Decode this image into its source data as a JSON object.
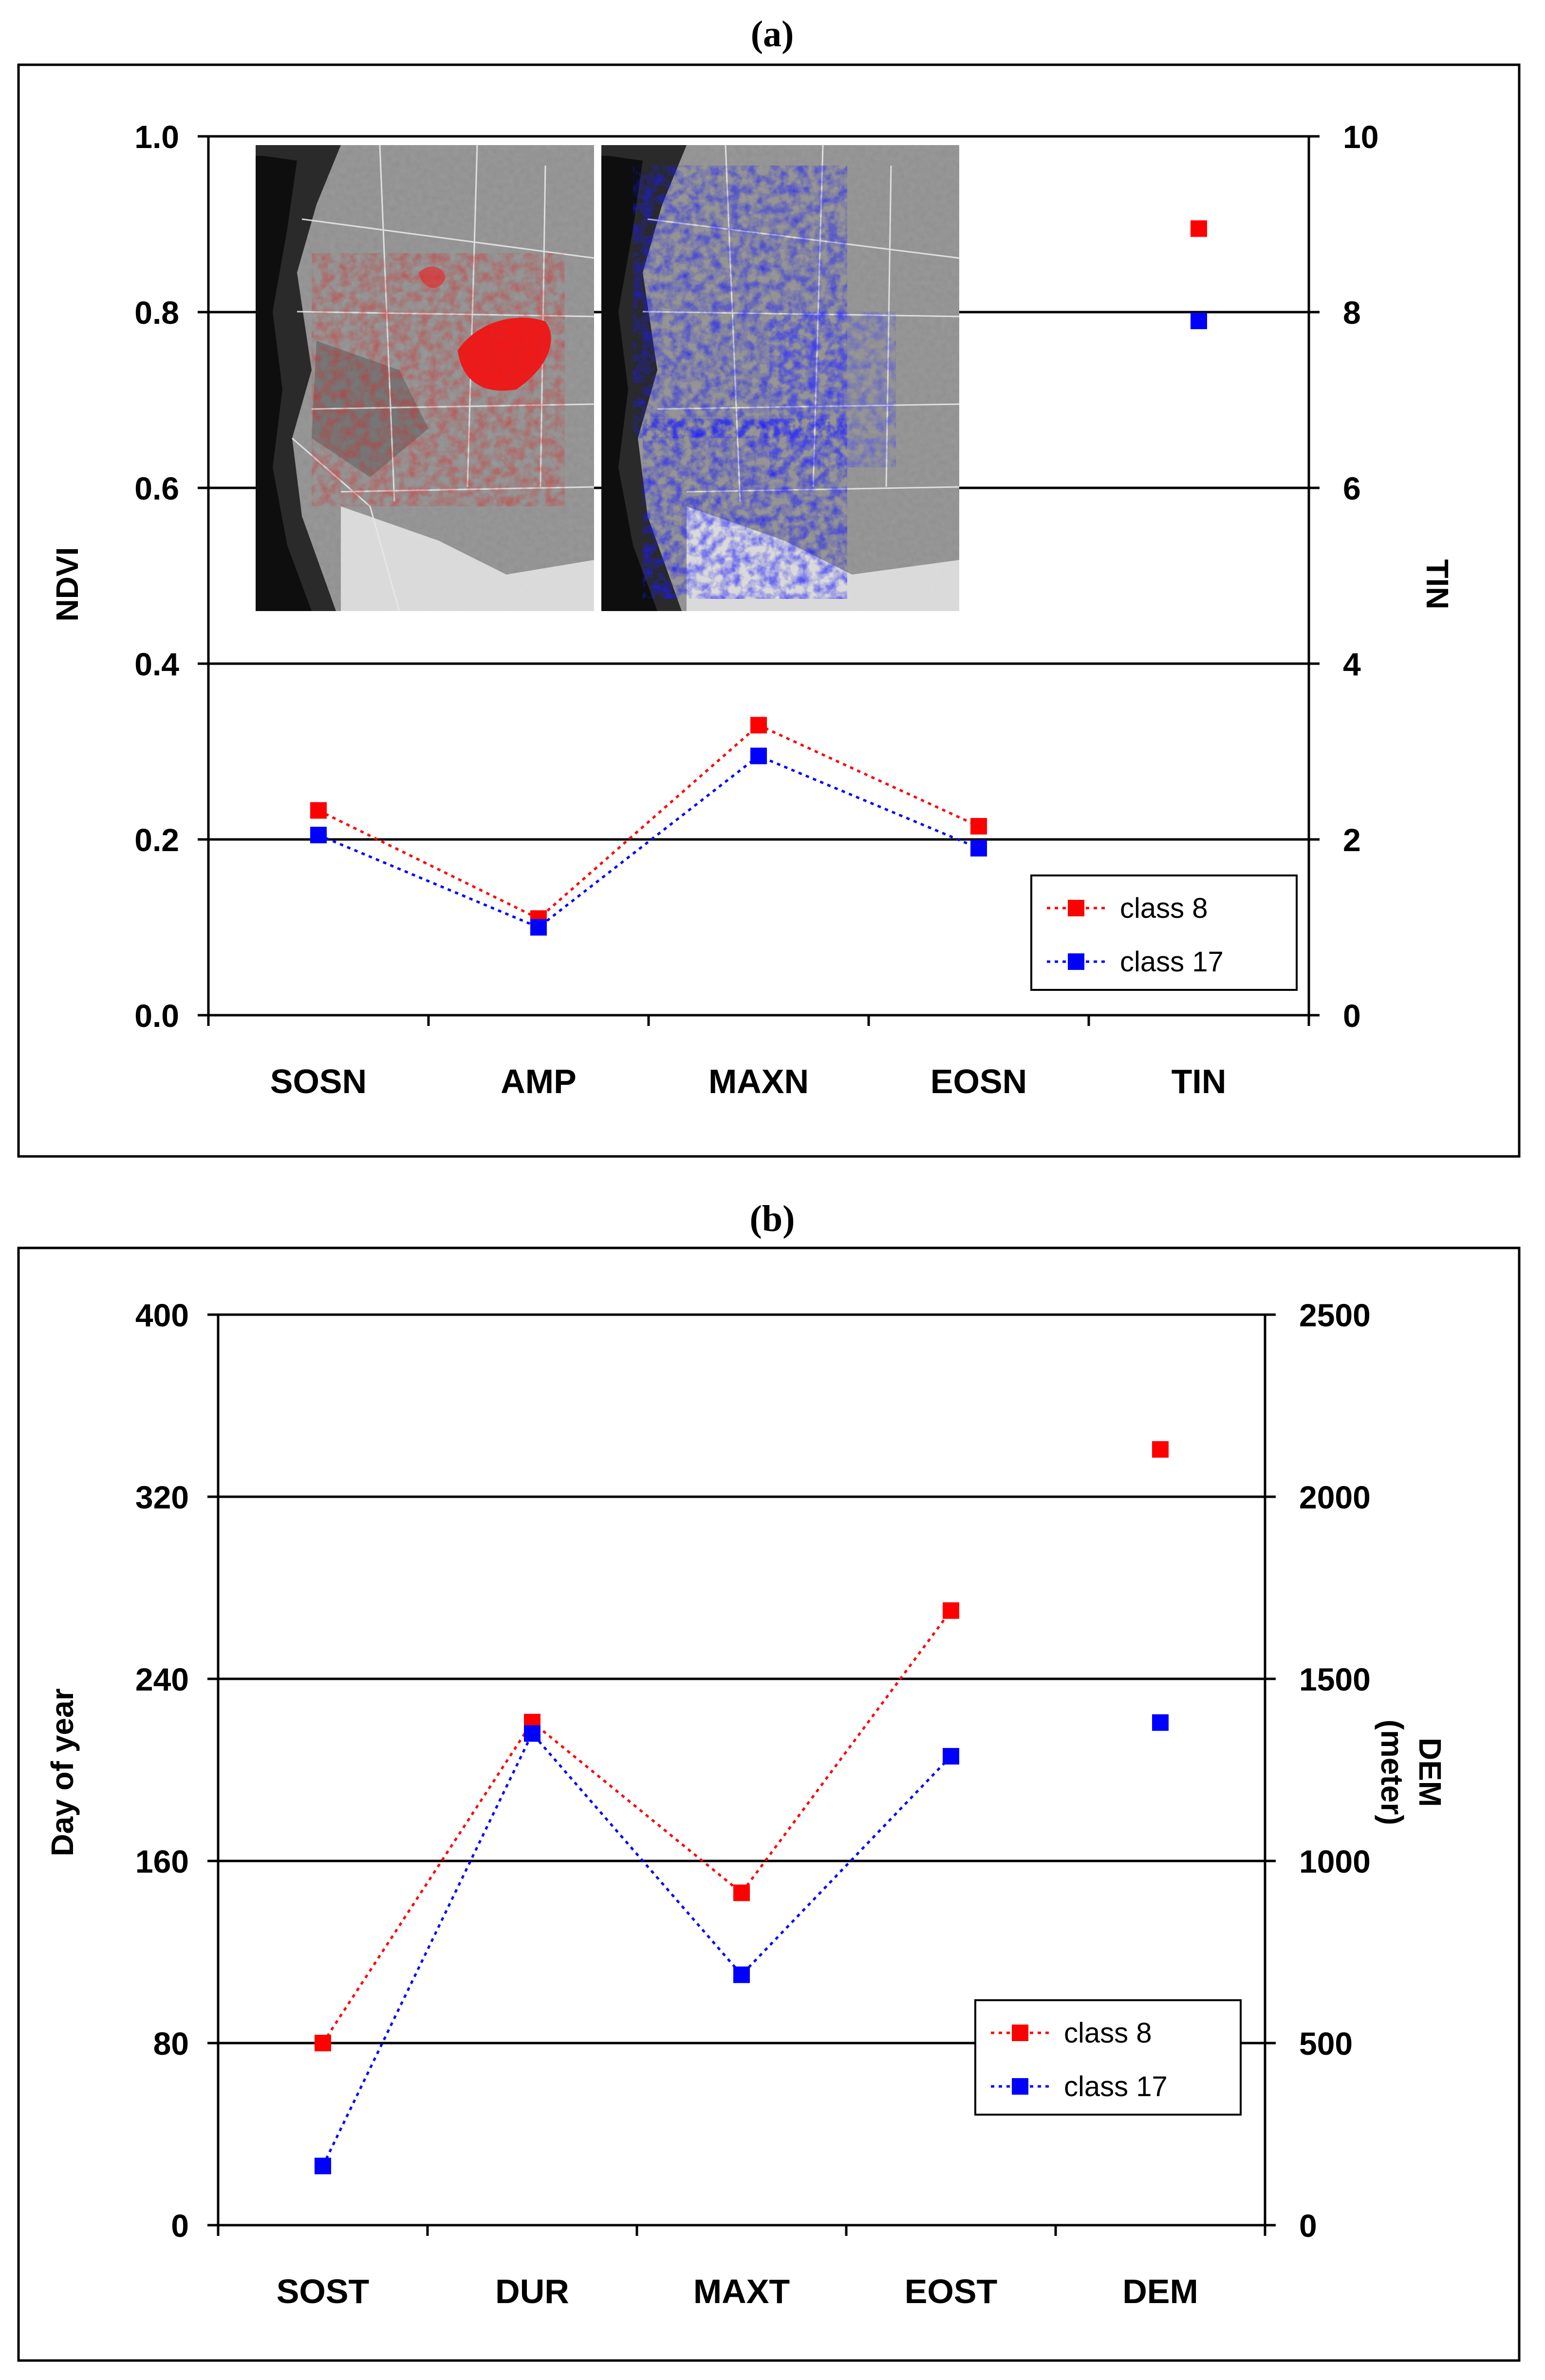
{
  "chart_data": [
    {
      "panel_label": "(a)",
      "type": "scatter",
      "categories": [
        "SOSN",
        "AMP",
        "MAXN",
        "EOSN",
        "TIN"
      ],
      "ylabel": "NDVI",
      "y2label": "TIN",
      "ylim": [
        0,
        1
      ],
      "y2lim": [
        0,
        10
      ],
      "yticks": [
        "0.0",
        "0.2",
        "0.4",
        "0.6",
        "0.8",
        "1.0"
      ],
      "y2ticks": [
        "0",
        "2",
        "4",
        "6",
        "8",
        "10"
      ],
      "grid": true,
      "legend_position": "bottom-right",
      "inset": "two grayscale maps of the western United States (class 8 in red, class 17 in blue)",
      "series": [
        {
          "name": "class 8",
          "color": "#ff0000",
          "values": [
            0.233,
            0.11,
            0.33,
            0.215,
            null
          ],
          "y2_values": [
            null,
            null,
            null,
            null,
            8.95
          ]
        },
        {
          "name": "class 17",
          "color": "#0000ff",
          "values": [
            0.205,
            0.1,
            0.295,
            0.19,
            null
          ],
          "y2_values": [
            null,
            null,
            null,
            null,
            7.9
          ]
        }
      ]
    },
    {
      "panel_label": "(b)",
      "type": "scatter",
      "categories": [
        "SOST",
        "DUR",
        "MAXT",
        "EOST",
        "DEM"
      ],
      "ylabel": "Day of year",
      "y2label": "DEM\n(meter)",
      "ylim": [
        0,
        400
      ],
      "y2lim": [
        0,
        2500
      ],
      "yticks": [
        "0",
        "80",
        "160",
        "240",
        "320",
        "400"
      ],
      "y2ticks": [
        "0",
        "500",
        "1000",
        "1500",
        "2000",
        "2500"
      ],
      "grid": true,
      "legend_position": "bottom-right",
      "series": [
        {
          "name": "class 8",
          "color": "#ff0000",
          "values": [
            80,
            221,
            146,
            270,
            null
          ],
          "y2_values": [
            null,
            null,
            null,
            null,
            2130
          ]
        },
        {
          "name": "class 17",
          "color": "#0000ff",
          "values": [
            26,
            216,
            110,
            206,
            null
          ],
          "y2_values": [
            null,
            null,
            null,
            null,
            1380
          ]
        }
      ]
    }
  ]
}
